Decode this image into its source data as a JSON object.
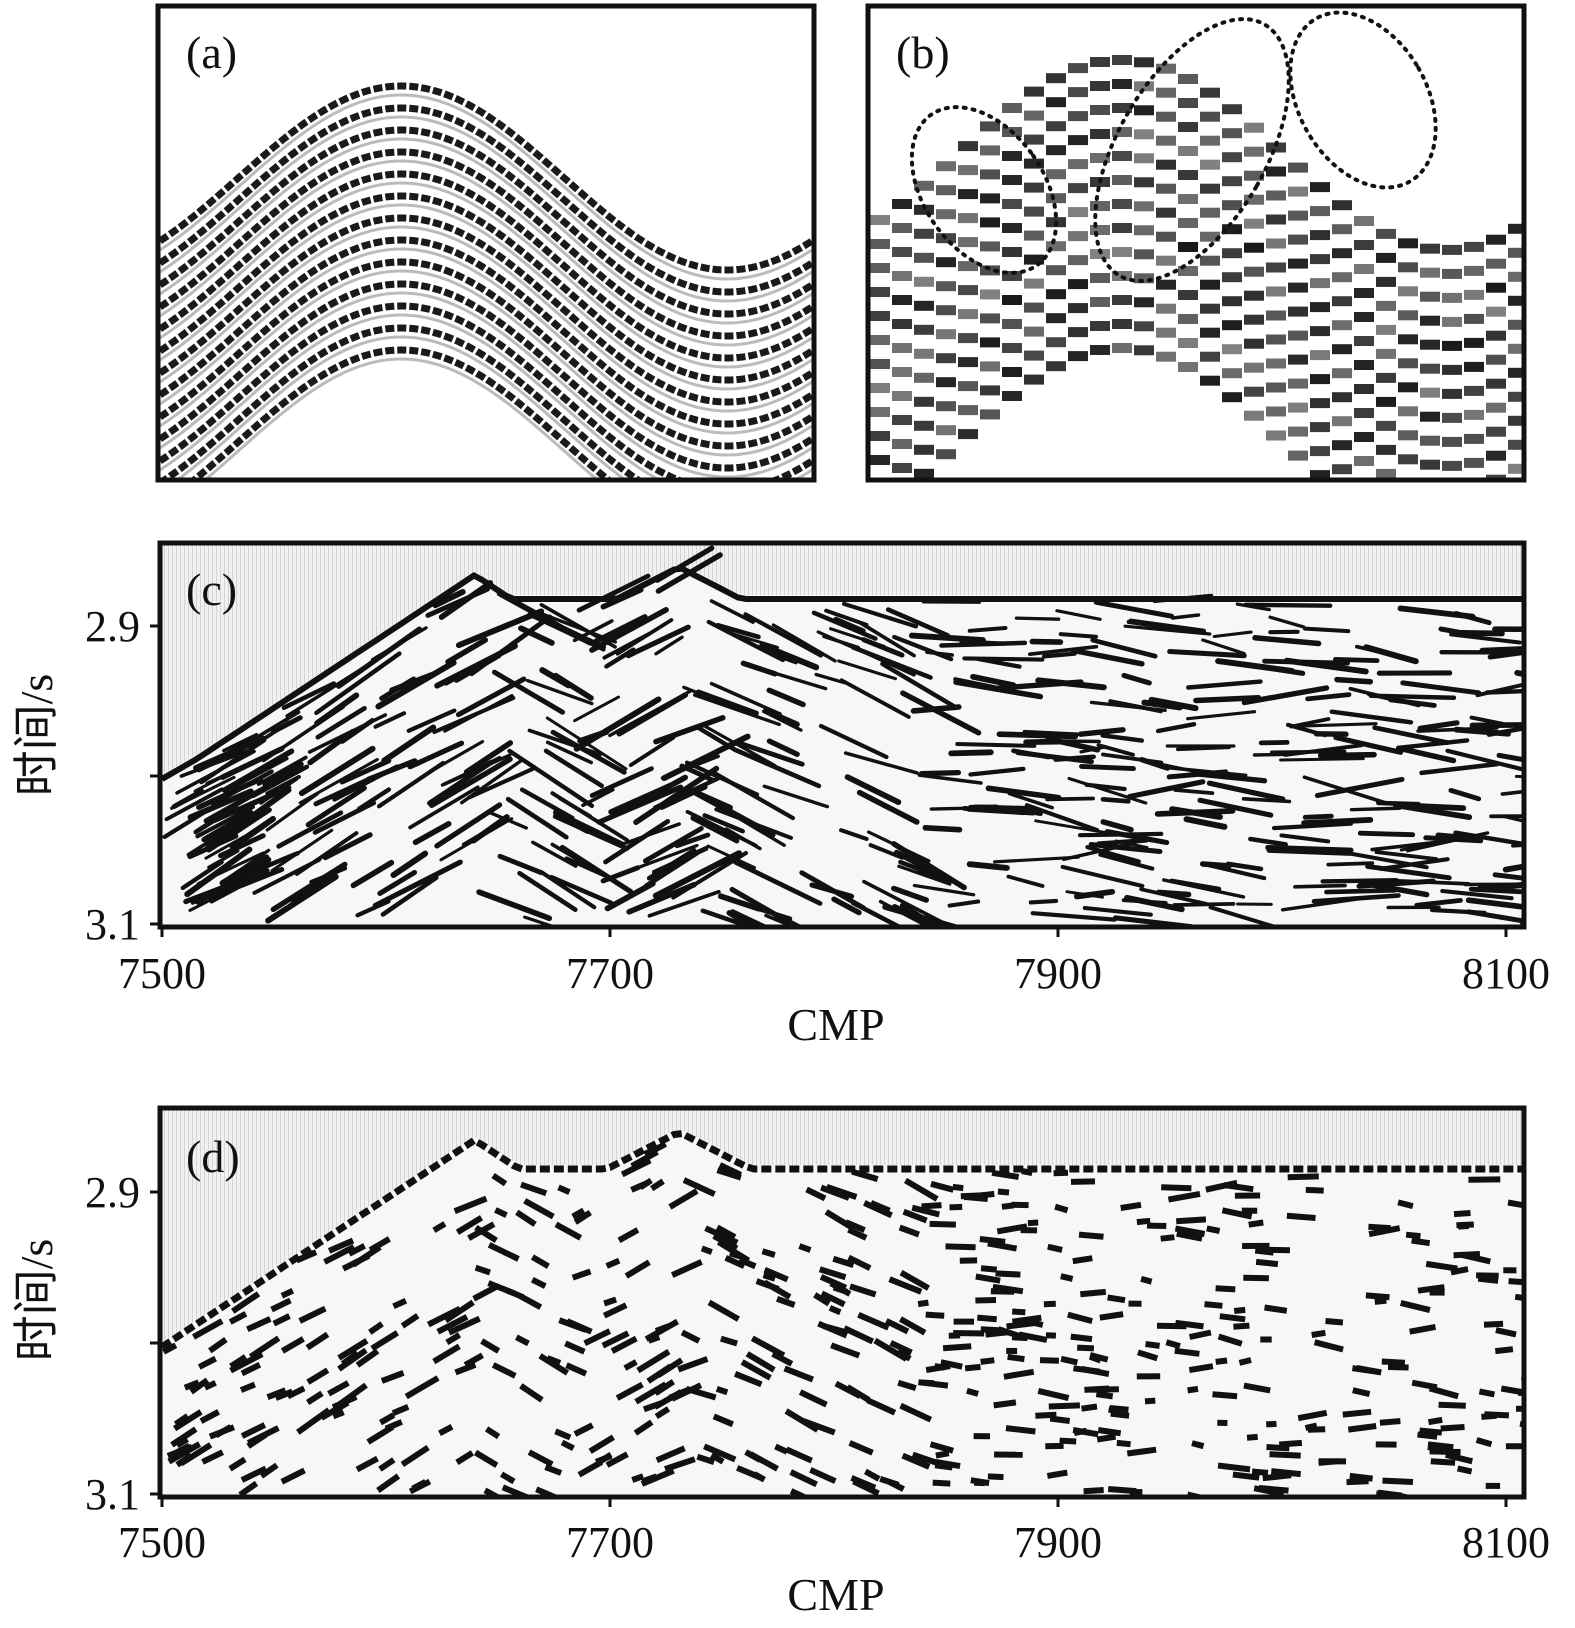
{
  "chart_data": [
    {
      "panel": "(a)",
      "type": "heatmap",
      "description_kind": "synthetic seismic section, smooth folded reflectors",
      "reflector_count": 13
    },
    {
      "panel": "(b)",
      "type": "heatmap",
      "description_kind": "synthetic seismic section, coarse blocky reflectors with dotted ellipse highlights",
      "reflector_count": 13,
      "highlight_ellipses": 3
    },
    {
      "panel": "(c)",
      "type": "heatmap",
      "xlabel": "CMP",
      "ylabel": "时间/s",
      "x_ticks": [
        "7500",
        "7700",
        "7900",
        "8100"
      ],
      "y_ticks": [
        "2.9",
        "3.1"
      ],
      "xlim": [
        7500,
        8100
      ],
      "ylim": [
        3.1,
        2.85
      ]
    },
    {
      "panel": "(d)",
      "type": "heatmap",
      "xlabel": "CMP",
      "ylabel": "时间/s",
      "x_ticks": [
        "7500",
        "7700",
        "7900",
        "8100"
      ],
      "y_ticks": [
        "2.9",
        "3.1"
      ],
      "xlim": [
        7500,
        8100
      ],
      "ylim": [
        3.1,
        2.85
      ]
    }
  ],
  "labels": {
    "a": "(a)",
    "b": "(b)",
    "c": "(c)",
    "d": "(d)",
    "xlabel": "CMP",
    "ylabel": "时间/s",
    "xticks": [
      "7500",
      "7700",
      "7900",
      "8100"
    ],
    "yticks": [
      "2.9",
      "3.1"
    ]
  },
  "colors": {
    "ink": "#111111",
    "paper": "#ffffff",
    "background_wash": "#e6e6e6"
  }
}
